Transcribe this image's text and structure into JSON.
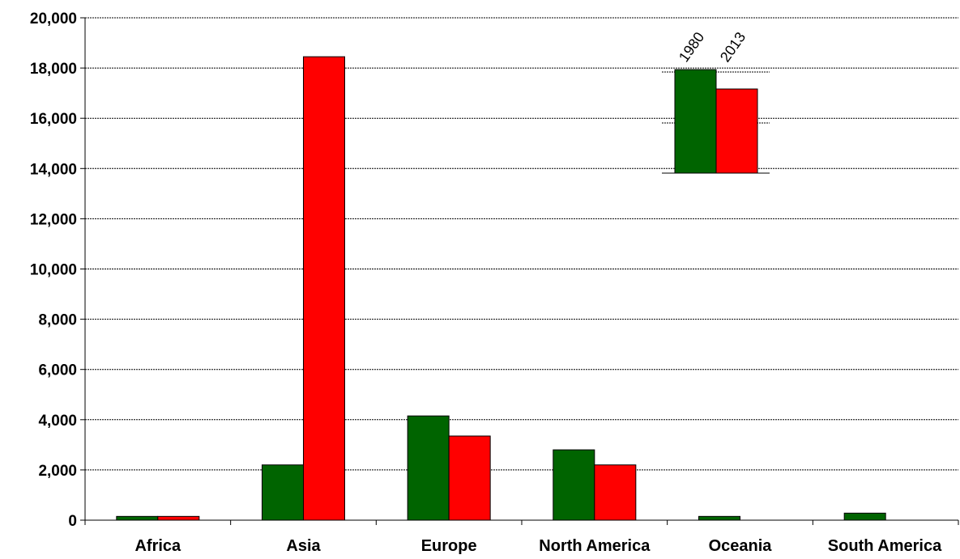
{
  "chart_data": {
    "type": "bar",
    "title": "",
    "xlabel": "",
    "ylabel": "",
    "ylim": [
      0,
      20000
    ],
    "yticks": [
      0,
      2000,
      4000,
      6000,
      8000,
      10000,
      12000,
      14000,
      16000,
      18000,
      20000
    ],
    "ytick_labels": [
      "0",
      "2,000",
      "4,000",
      "6,000",
      "8,000",
      "10,000",
      "12,000",
      "14,000",
      "16,000",
      "18,000",
      "20,000"
    ],
    "grid": true,
    "legend_position": "top-right",
    "categories": [
      "Africa",
      "Asia",
      "Europe",
      "North America",
      "Oceania",
      "South America"
    ],
    "series": [
      {
        "name": "1980",
        "color": "#006400",
        "values": [
          150,
          2200,
          4150,
          2800,
          150,
          280
        ]
      },
      {
        "name": "2013",
        "color": "#ff0000",
        "values": [
          150,
          18450,
          3350,
          2200,
          0,
          0
        ]
      }
    ]
  }
}
